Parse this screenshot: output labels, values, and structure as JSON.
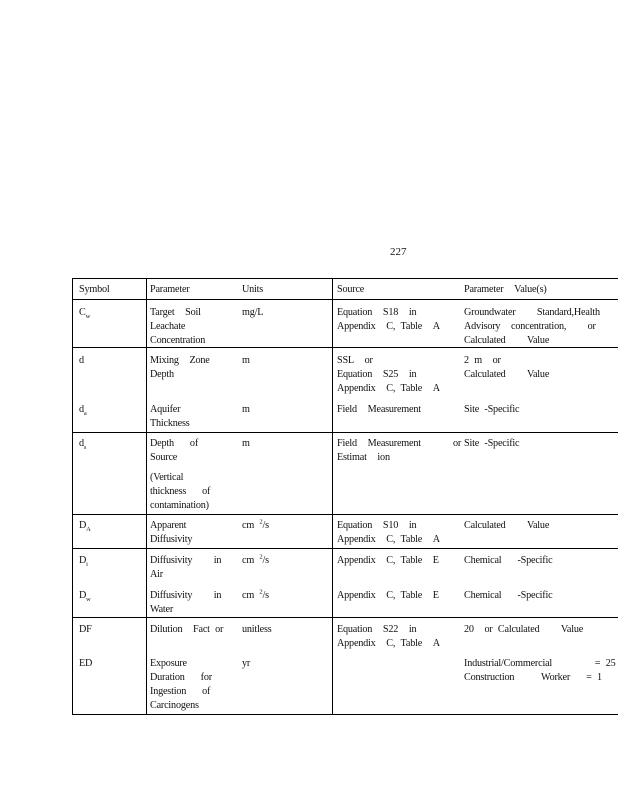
{
  "page_number": "227",
  "table": {
    "headers": {
      "symbol": "Symbol",
      "parameter": "Parameter",
      "units": "Units",
      "source": "Source",
      "value": "Parameter  Value(s)"
    },
    "rows": [
      {
        "symbol": "C",
        "sub": "w",
        "parameter": [
          "Target  Soil",
          "Leachate",
          "Concentration"
        ],
        "units": "mg/L",
        "source": [
          "Equation  S18  in",
          "Appendix  C, Table  A"
        ],
        "value": [
          "Groundwater    Standard,Health",
          "Advisory  concentration,    or",
          "Calculated    Value"
        ]
      },
      {
        "symbol": "d",
        "sub": "",
        "parameter": [
          "Mixing  Zone",
          "Depth"
        ],
        "units": "m",
        "source": [
          "SSL  or",
          "Equation  S25  in",
          "Appendix  C, Table  A"
        ],
        "value": [
          "2 m  or",
          "Calculated    Value"
        ]
      },
      {
        "symbol": "d",
        "sub": "a",
        "parameter": [
          "Aquifer",
          "Thickness"
        ],
        "units": "m",
        "source": [
          "Field  Measurement"
        ],
        "value": [
          "Site -Specific"
        ]
      },
      {
        "symbol": "d",
        "sub": "s",
        "parameter": [
          "Depth   of",
          "Source"
        ],
        "parameter_note": [
          "(Vertical",
          "thickness   of",
          "contamination)"
        ],
        "units": "m",
        "source": [
          "Field  Measurement      or",
          "Estimat  ion"
        ],
        "value": [
          "Site -Specific"
        ]
      },
      {
        "symbol": "D",
        "sub": "A",
        "parameter": [
          "Apparent",
          "Diffusivity"
        ],
        "units": "cm",
        "units_sup": "2",
        "units_tail": "/s",
        "source": [
          "Equation  S10  in",
          "Appendix  C, Table  A"
        ],
        "value": [
          "Calculated    Value"
        ]
      },
      {
        "symbol": "D",
        "sub": "i",
        "parameter": [
          "Diffusivity    in",
          "Air"
        ],
        "units": "cm",
        "units_sup": "2",
        "units_tail": "/s",
        "source": [
          "Appendix  C, Table  E"
        ],
        "value": [
          "Chemical   -Specific"
        ]
      },
      {
        "symbol": "D",
        "sub": "w",
        "parameter": [
          "Diffusivity    in",
          "Water"
        ],
        "units": "cm",
        "units_sup": "2",
        "units_tail": "/s",
        "source": [
          "Appendix  C, Table  E"
        ],
        "value": [
          "Chemical   -Specific"
        ]
      },
      {
        "symbol": "DF",
        "sub": "",
        "parameter": [
          "Dilution  Fact or"
        ],
        "units": "unitless",
        "source": [
          "Equation  S22  in",
          "Appendix  C, Table  A"
        ],
        "value": [
          "20  or Calculated    Value"
        ]
      },
      {
        "symbol": "ED",
        "sub": "",
        "parameter": [
          "Exposure",
          "Duration   for",
          "Ingestion   of",
          "Carcinogens"
        ],
        "units": "yr",
        "source": [],
        "value": [
          "Industrial/Commercial        = 25",
          "Construction     Worker   = 1"
        ]
      }
    ]
  }
}
